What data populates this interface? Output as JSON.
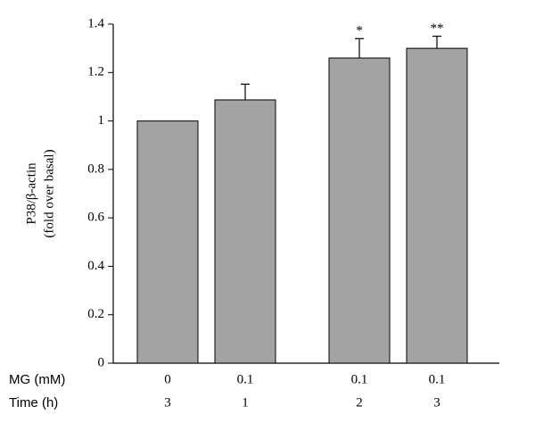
{
  "chart_data": {
    "type": "bar",
    "ylabel": [
      "P38/β-actin",
      "(fold over basal)"
    ],
    "categories": [
      null,
      null,
      null,
      null
    ],
    "category_rows": [
      {
        "label": "MG (mM)",
        "values": [
          "0",
          "0.1",
          "0.1",
          "0.1"
        ]
      },
      {
        "label": "Time (h)",
        "values": [
          "3",
          "1",
          "2",
          "3"
        ]
      }
    ],
    "values": [
      1.0,
      1.087,
      1.26,
      1.3
    ],
    "errors": [
      null,
      0.065,
      0.08,
      0.05
    ],
    "annotations": [
      null,
      null,
      "*",
      "**"
    ],
    "color": "#a3a3a3",
    "ylim": [
      0,
      1.4
    ],
    "yticks": [
      0,
      0.2,
      0.4,
      0.6,
      0.8,
      1,
      1.2,
      1.4
    ]
  }
}
